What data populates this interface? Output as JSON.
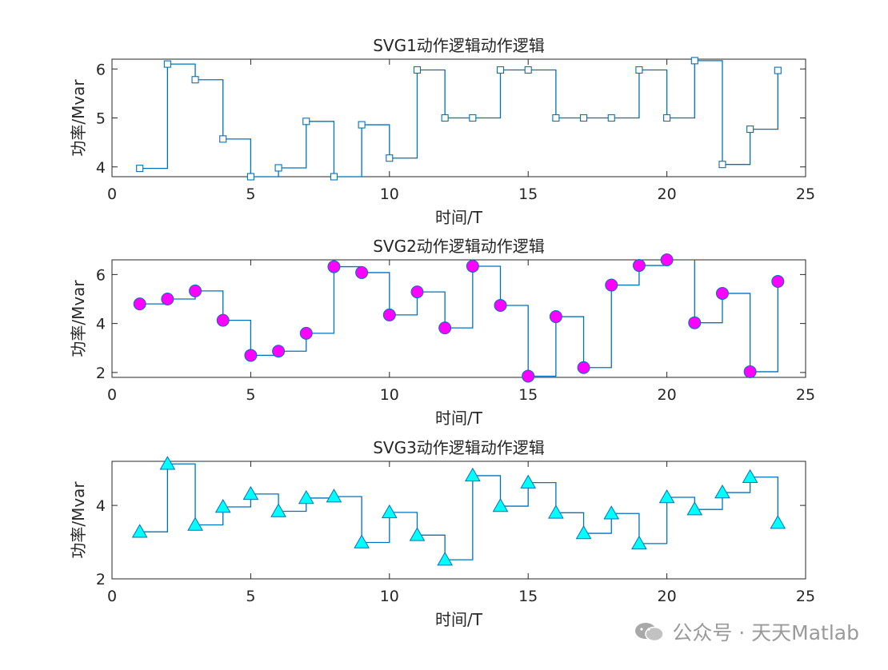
{
  "chart_data": [
    {
      "type": "line",
      "subtype": "stairs",
      "title": "SVG1动作逻辑动作逻辑",
      "xlabel": "时间/T",
      "ylabel": "功率/Mvar",
      "xlim": [
        0,
        25
      ],
      "ylim": [
        3.8,
        6.2
      ],
      "xticks": [
        0,
        5,
        10,
        15,
        20,
        25
      ],
      "yticks": [
        4,
        5,
        6
      ],
      "marker": "square",
      "color": "#0072BD",
      "marker_fill": "none",
      "x": [
        1,
        2,
        3,
        4,
        5,
        6,
        7,
        8,
        9,
        10,
        11,
        12,
        13,
        14,
        15,
        16,
        17,
        18,
        19,
        20,
        21,
        22,
        23,
        24
      ],
      "values": [
        3.97,
        6.1,
        5.78,
        4.57,
        3.8,
        3.98,
        4.93,
        3.8,
        4.86,
        4.18,
        5.98,
        5.0,
        5.0,
        5.98,
        5.98,
        5.0,
        5.0,
        5.0,
        5.98,
        5.0,
        6.17,
        4.05,
        4.77,
        5.97
      ]
    },
    {
      "type": "line",
      "subtype": "stairs",
      "title": "SVG2动作逻辑动作逻辑",
      "xlabel": "时间/T",
      "ylabel": "功率/Mvar",
      "xlim": [
        0,
        25
      ],
      "ylim": [
        1.8,
        6.6
      ],
      "xticks": [
        0,
        5,
        10,
        15,
        20,
        25
      ],
      "yticks": [
        2,
        4,
        6
      ],
      "marker": "circle",
      "color": "#0072BD",
      "marker_fill": "#FF00FF",
      "x": [
        1,
        2,
        3,
        4,
        5,
        6,
        7,
        8,
        9,
        10,
        11,
        12,
        13,
        14,
        15,
        16,
        17,
        18,
        19,
        20,
        21,
        22,
        23,
        24
      ],
      "values": [
        4.8,
        5.0,
        5.33,
        4.13,
        2.7,
        2.87,
        3.6,
        6.32,
        6.08,
        4.35,
        5.29,
        3.82,
        6.34,
        4.74,
        1.85,
        4.28,
        2.2,
        5.57,
        6.37,
        6.6,
        4.03,
        5.23,
        2.03,
        5.72
      ]
    },
    {
      "type": "line",
      "subtype": "stairs",
      "title": "SVG3动作逻辑动作逻辑",
      "xlabel": "时间/T",
      "ylabel": "功率/Mvar",
      "xlim": [
        0,
        25
      ],
      "ylim": [
        2,
        5.2
      ],
      "xticks": [
        0,
        5,
        10,
        15,
        20,
        25
      ],
      "yticks": [
        2,
        4
      ],
      "marker": "triangle",
      "color": "#0072BD",
      "marker_fill": "#00FFFF",
      "x": [
        1,
        2,
        3,
        4,
        5,
        6,
        7,
        8,
        9,
        10,
        11,
        12,
        13,
        14,
        15,
        16,
        17,
        18,
        19,
        20,
        21,
        22,
        23,
        24
      ],
      "values": [
        3.28,
        5.13,
        3.47,
        3.96,
        4.31,
        3.84,
        4.2,
        4.24,
        2.99,
        3.81,
        3.19,
        2.52,
        4.81,
        3.98,
        4.62,
        3.8,
        3.24,
        3.78,
        2.96,
        4.22,
        3.89,
        4.35,
        4.77,
        3.52
      ]
    }
  ],
  "watermark": {
    "text": "公众号 · 天天Matlab",
    "icon": "wechat-icon"
  }
}
